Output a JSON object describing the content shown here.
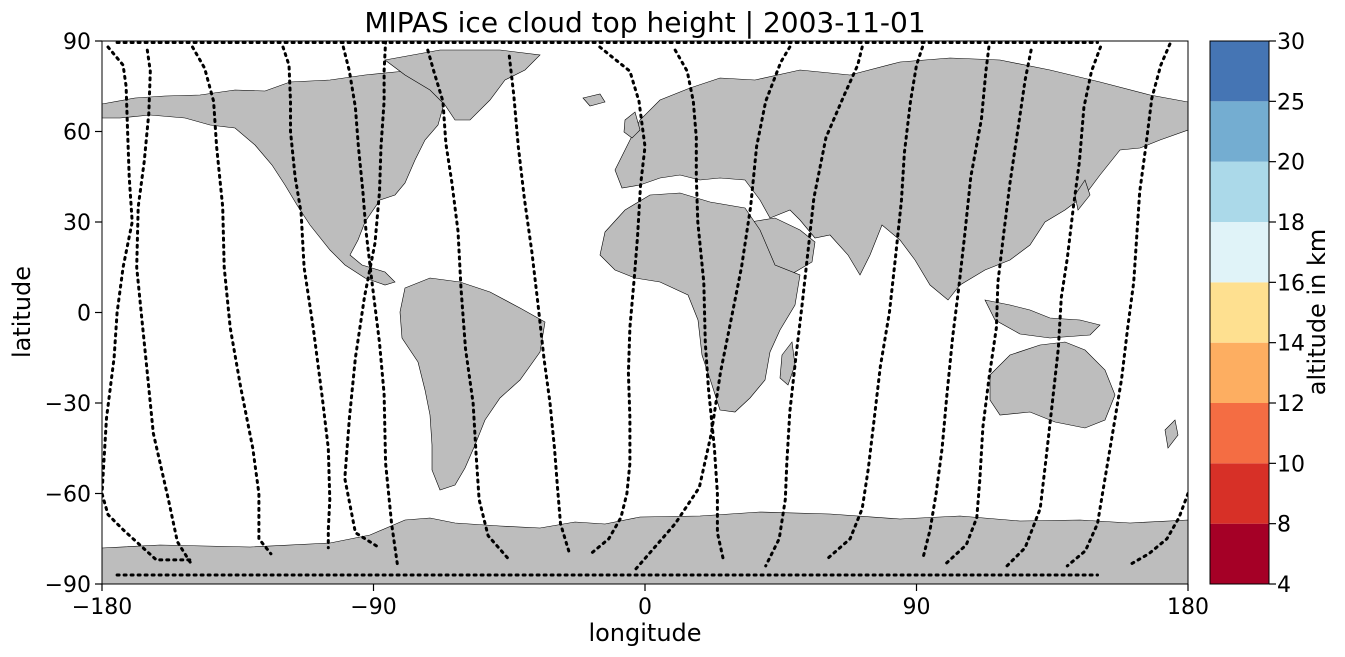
{
  "chart_data": {
    "type": "scatter",
    "title": "MIPAS ice cloud top height | 2003-11-01",
    "xlabel": "longitude",
    "ylabel": "latitude",
    "xlim": [
      -180,
      180
    ],
    "ylim": [
      -90,
      90
    ],
    "xticks": [
      -180,
      -90,
      0,
      90,
      180
    ],
    "yticks": [
      -90,
      -60,
      -30,
      0,
      30,
      60,
      90
    ],
    "xtick_labels": [
      "−180",
      "−90",
      "0",
      "90",
      "180"
    ],
    "ytick_labels": [
      "−90",
      "−60",
      "−30",
      "0",
      "30",
      "60",
      "90"
    ],
    "background": "world map, land in light gray with black coastlines",
    "colorbar": {
      "label": "altitude in km",
      "levels": [
        4,
        8,
        10,
        12,
        14,
        16,
        18,
        20,
        25,
        30
      ],
      "tick_labels": [
        "4",
        "8",
        "10",
        "12",
        "14",
        "16",
        "18",
        "20",
        "25",
        "30"
      ],
      "colors": [
        "#a50026",
        "#d73027",
        "#f46d43",
        "#fdae61",
        "#fee090",
        "#e0f3f8",
        "#abd9e9",
        "#74add1",
        "#4575b4",
        "#313695"
      ],
      "position": "right"
    },
    "colors": {
      "land": "#bdbdbd",
      "coast": "#000000",
      "track": "#000000"
    },
    "tracks": [
      {
        "points": [
          [
            -178.0,
            88.0
          ],
          [
            -173.0,
            82.0
          ],
          [
            -172.0,
            75.0
          ],
          [
            -171.5,
            60.0
          ],
          [
            -171.0,
            45.0
          ],
          [
            -170.0,
            30.0
          ],
          [
            -173.0,
            15.0
          ],
          [
            -175.0,
            0.0
          ],
          [
            -176.0,
            -15.0
          ],
          [
            -178.5,
            -35.0
          ],
          [
            -180.0,
            -60.0
          ],
          [
            -178.0,
            -67.0
          ],
          [
            -173.0,
            -72.0
          ],
          [
            -162.0,
            -82.0
          ],
          [
            -150.0,
            -82.0
          ]
        ]
      },
      {
        "points": [
          [
            -165.0,
            87.0
          ],
          [
            -164.0,
            80.0
          ],
          [
            -164.5,
            66.0
          ],
          [
            -166.0,
            50.0
          ],
          [
            -168.0,
            35.0
          ],
          [
            -168.5,
            15.0
          ],
          [
            -167.0,
            0.0
          ],
          [
            -165.0,
            -20.0
          ],
          [
            -163.0,
            -40.0
          ],
          [
            -158.0,
            -62.0
          ],
          [
            -155.0,
            -76.0
          ],
          [
            -150.0,
            -84.0
          ]
        ]
      },
      {
        "points": [
          [
            -150.0,
            88.0
          ],
          [
            -146.0,
            81.0
          ],
          [
            -143.0,
            70.0
          ],
          [
            -142.0,
            55.0
          ],
          [
            -140.0,
            35.0
          ],
          [
            -139.5,
            15.0
          ],
          [
            -137.5,
            -5.0
          ],
          [
            -134.0,
            -25.0
          ],
          [
            -130.0,
            -45.0
          ],
          [
            -128.0,
            -60.0
          ],
          [
            -128.0,
            -75.0
          ],
          [
            -124.0,
            -80.0
          ]
        ]
      },
      {
        "points": [
          [
            -120.0,
            88.0
          ],
          [
            -118.0,
            82.0
          ],
          [
            -117.5,
            70.0
          ],
          [
            -117.5,
            60.0
          ],
          [
            -116.0,
            45.0
          ],
          [
            -114.0,
            33.0
          ],
          [
            -113.0,
            15.0
          ],
          [
            -110.0,
            -5.0
          ],
          [
            -107.0,
            -28.0
          ],
          [
            -105.0,
            -45.0
          ],
          [
            -104.5,
            -62.0
          ],
          [
            -105.0,
            -72.0
          ],
          [
            -105.0,
            -78.0
          ]
        ]
      },
      {
        "points": [
          [
            -100.0,
            88.0
          ],
          [
            -98.0,
            80.0
          ],
          [
            -96.0,
            68.0
          ],
          [
            -95.0,
            55.0
          ],
          [
            -93.5,
            40.0
          ],
          [
            -92.5,
            27.0
          ],
          [
            -90.5,
            10.0
          ],
          [
            -88.0,
            -10.0
          ],
          [
            -86.5,
            -27.0
          ],
          [
            -86.0,
            -50.0
          ],
          [
            -84.0,
            -70.0
          ],
          [
            -82.0,
            -84.0
          ]
        ]
      },
      {
        "points": [
          [
            -86.0,
            90.0
          ],
          [
            -86.5,
            80.0
          ],
          [
            -86.5,
            70.0
          ],
          [
            -87.5,
            55.0
          ],
          [
            -88.0,
            40.0
          ],
          [
            -89.5,
            23.0
          ],
          [
            -93.0,
            5.0
          ],
          [
            -96.0,
            -15.0
          ],
          [
            -98.0,
            -35.0
          ],
          [
            -99.5,
            -55.0
          ],
          [
            -96.0,
            -73.0
          ],
          [
            -88.0,
            -78.0
          ]
        ]
      },
      {
        "points": [
          [
            -72.0,
            87.0
          ],
          [
            -70.0,
            80.0
          ],
          [
            -67.0,
            70.0
          ],
          [
            -66.0,
            56.0
          ],
          [
            -64.0,
            43.0
          ],
          [
            -62.0,
            27.0
          ],
          [
            -61.0,
            8.0
          ],
          [
            -59.5,
            -12.0
          ],
          [
            -57.0,
            -30.0
          ],
          [
            -56.0,
            -47.0
          ],
          [
            -55.0,
            -62.0
          ],
          [
            -52.0,
            -74.0
          ],
          [
            -45.0,
            -82.0
          ]
        ]
      },
      {
        "points": [
          [
            -45.0,
            85.0
          ],
          [
            -43.5,
            72.0
          ],
          [
            -42.0,
            55.0
          ],
          [
            -40.0,
            38.0
          ],
          [
            -37.5,
            20.0
          ],
          [
            -35.5,
            3.0
          ],
          [
            -33.5,
            -15.0
          ],
          [
            -31.5,
            -30.0
          ],
          [
            -30.0,
            -45.0
          ],
          [
            -29.0,
            -58.0
          ],
          [
            -28.0,
            -70.0
          ],
          [
            -25.0,
            -80.0
          ]
        ]
      },
      {
        "points": [
          [
            -15.0,
            88.0
          ],
          [
            -10.0,
            84.0
          ],
          [
            -5.0,
            80.0
          ],
          [
            -2.0,
            70.0
          ],
          [
            0.0,
            55.0
          ],
          [
            -1.5,
            42.0
          ],
          [
            -2.5,
            25.0
          ],
          [
            -3.5,
            12.0
          ],
          [
            -5.0,
            -5.0
          ],
          [
            -5.5,
            -20.0
          ],
          [
            -5.0,
            -35.0
          ],
          [
            -5.0,
            -50.0
          ],
          [
            -6.0,
            -60.0
          ],
          [
            -8.0,
            -68.0
          ],
          [
            -12.0,
            -75.0
          ],
          [
            -18.0,
            -80.0
          ]
        ]
      },
      {
        "points": [
          [
            10.0,
            87.0
          ],
          [
            14.0,
            80.0
          ],
          [
            16.0,
            70.0
          ],
          [
            17.0,
            58.0
          ],
          [
            17.0,
            45.0
          ],
          [
            17.5,
            30.0
          ],
          [
            19.5,
            10.0
          ],
          [
            20.0,
            -10.0
          ],
          [
            21.0,
            -25.0
          ],
          [
            23.0,
            -45.0
          ],
          [
            24.0,
            -60.0
          ],
          [
            24.0,
            -73.0
          ],
          [
            26.0,
            -82.0
          ]
        ]
      },
      {
        "points": [
          [
            48.0,
            88.0
          ],
          [
            45.0,
            83.0
          ],
          [
            40.0,
            70.0
          ],
          [
            37.0,
            55.0
          ],
          [
            35.0,
            35.0
          ],
          [
            32.0,
            15.0
          ],
          [
            28.0,
            -5.0
          ],
          [
            25.0,
            -20.0
          ],
          [
            22.0,
            -40.0
          ],
          [
            18.0,
            -58.0
          ],
          [
            10.0,
            -70.0
          ],
          [
            -3.0,
            -85.0
          ]
        ]
      },
      {
        "points": [
          [
            72.0,
            88.0
          ],
          [
            70.5,
            82.0
          ],
          [
            66.0,
            72.0
          ],
          [
            60.0,
            58.0
          ],
          [
            56.0,
            38.0
          ],
          [
            54.0,
            20.0
          ],
          [
            52.0,
            2.0
          ],
          [
            50.0,
            -15.0
          ],
          [
            48.0,
            -33.0
          ],
          [
            47.0,
            -50.0
          ],
          [
            46.5,
            -62.0
          ],
          [
            44.5,
            -75.0
          ],
          [
            40.0,
            -84.0
          ]
        ]
      },
      {
        "points": [
          [
            92.0,
            88.0
          ],
          [
            90.0,
            82.0
          ],
          [
            88.0,
            70.0
          ],
          [
            86.0,
            53.0
          ],
          [
            85.0,
            37.0
          ],
          [
            83.0,
            18.0
          ],
          [
            81.0,
            0.0
          ],
          [
            78.0,
            -18.0
          ],
          [
            76.0,
            -35.0
          ],
          [
            74.0,
            -52.0
          ],
          [
            72.0,
            -65.0
          ],
          [
            68.0,
            -75.0
          ],
          [
            60.0,
            -82.0
          ]
        ]
      },
      {
        "points": [
          [
            114.0,
            88.0
          ],
          [
            113.0,
            80.0
          ],
          [
            111.5,
            64.0
          ],
          [
            108.0,
            45.0
          ],
          [
            106.0,
            26.0
          ],
          [
            104.0,
            8.0
          ],
          [
            102.0,
            -8.0
          ],
          [
            100.0,
            -28.0
          ],
          [
            98.5,
            -45.0
          ],
          [
            96.5,
            -60.0
          ],
          [
            94.5,
            -72.0
          ],
          [
            92.0,
            -82.0
          ]
        ]
      },
      {
        "points": [
          [
            128.0,
            87.0
          ],
          [
            126.0,
            77.0
          ],
          [
            123.5,
            60.0
          ],
          [
            121.0,
            43.0
          ],
          [
            119.0,
            27.0
          ],
          [
            117.0,
            10.0
          ],
          [
            116.5,
            -5.0
          ],
          [
            114.0,
            -22.0
          ],
          [
            112.0,
            -38.0
          ],
          [
            111.0,
            -55.0
          ],
          [
            110.0,
            -68.0
          ],
          [
            106.5,
            -77.0
          ],
          [
            100.0,
            -83.0
          ]
        ]
      },
      {
        "points": [
          [
            151.0,
            88.0
          ],
          [
            148.0,
            80.0
          ],
          [
            145.5,
            68.0
          ],
          [
            144.0,
            50.0
          ],
          [
            142.0,
            35.0
          ],
          [
            140.0,
            18.0
          ],
          [
            138.0,
            5.0
          ],
          [
            137.0,
            -12.0
          ],
          [
            135.0,
            -30.0
          ],
          [
            133.0,
            -48.0
          ],
          [
            131.0,
            -65.0
          ],
          [
            126.0,
            -78.0
          ],
          [
            120.0,
            -84.0
          ]
        ]
      },
      {
        "points": [
          [
            174.0,
            89.0
          ],
          [
            171.0,
            82.0
          ],
          [
            168.0,
            71.0
          ],
          [
            166.0,
            55.0
          ],
          [
            164.0,
            40.0
          ],
          [
            163.0,
            25.0
          ],
          [
            162.0,
            10.0
          ],
          [
            160.0,
            -5.0
          ],
          [
            158.0,
            -22.0
          ],
          [
            155.0,
            -40.0
          ],
          [
            152.0,
            -58.0
          ],
          [
            150.0,
            -70.0
          ],
          [
            146.0,
            -79.0
          ],
          [
            140.0,
            -84.0
          ]
        ]
      },
      {
        "points": [
          [
            180.0,
            -60.0
          ],
          [
            177.0,
            -68.0
          ],
          [
            173.0,
            -75.0
          ],
          [
            167.0,
            -80.0
          ],
          [
            160.0,
            -84.0
          ]
        ]
      }
    ],
    "extra_tracks": [
      {
        "points": [
          [
            -175.0,
            -87.0
          ],
          [
            -150.0,
            -87.0
          ],
          [
            -125.0,
            -87.0
          ],
          [
            -100.0,
            -87.0
          ],
          [
            -80.0,
            -87.0
          ],
          [
            -60.0,
            -87.0
          ],
          [
            -40.0,
            -87.0
          ],
          [
            -20.0,
            -87.0
          ],
          [
            0.0,
            -87.0
          ],
          [
            20.0,
            -87.0
          ],
          [
            40.0,
            -87.0
          ],
          [
            60.0,
            -87.0
          ],
          [
            80.0,
            -87.0
          ],
          [
            100.0,
            -87.0
          ],
          [
            120.0,
            -87.0
          ],
          [
            150.0,
            -87.0
          ]
        ]
      },
      {
        "points": [
          [
            -175.0,
            89.5
          ],
          [
            -150.0,
            89.5
          ],
          [
            -125.0,
            89.5
          ],
          [
            -100.0,
            89.5
          ],
          [
            -80.0,
            89.5
          ],
          [
            -60.0,
            89.5
          ],
          [
            -40.0,
            89.5
          ],
          [
            -20.0,
            89.5
          ],
          [
            0.0,
            89.5
          ],
          [
            20.0,
            89.5
          ],
          [
            40.0,
            89.5
          ],
          [
            60.0,
            89.5
          ],
          [
            80.0,
            89.5
          ],
          [
            100.0,
            89.5
          ],
          [
            120.0,
            89.5
          ],
          [
            150.0,
            89.5
          ]
        ]
      }
    ]
  }
}
